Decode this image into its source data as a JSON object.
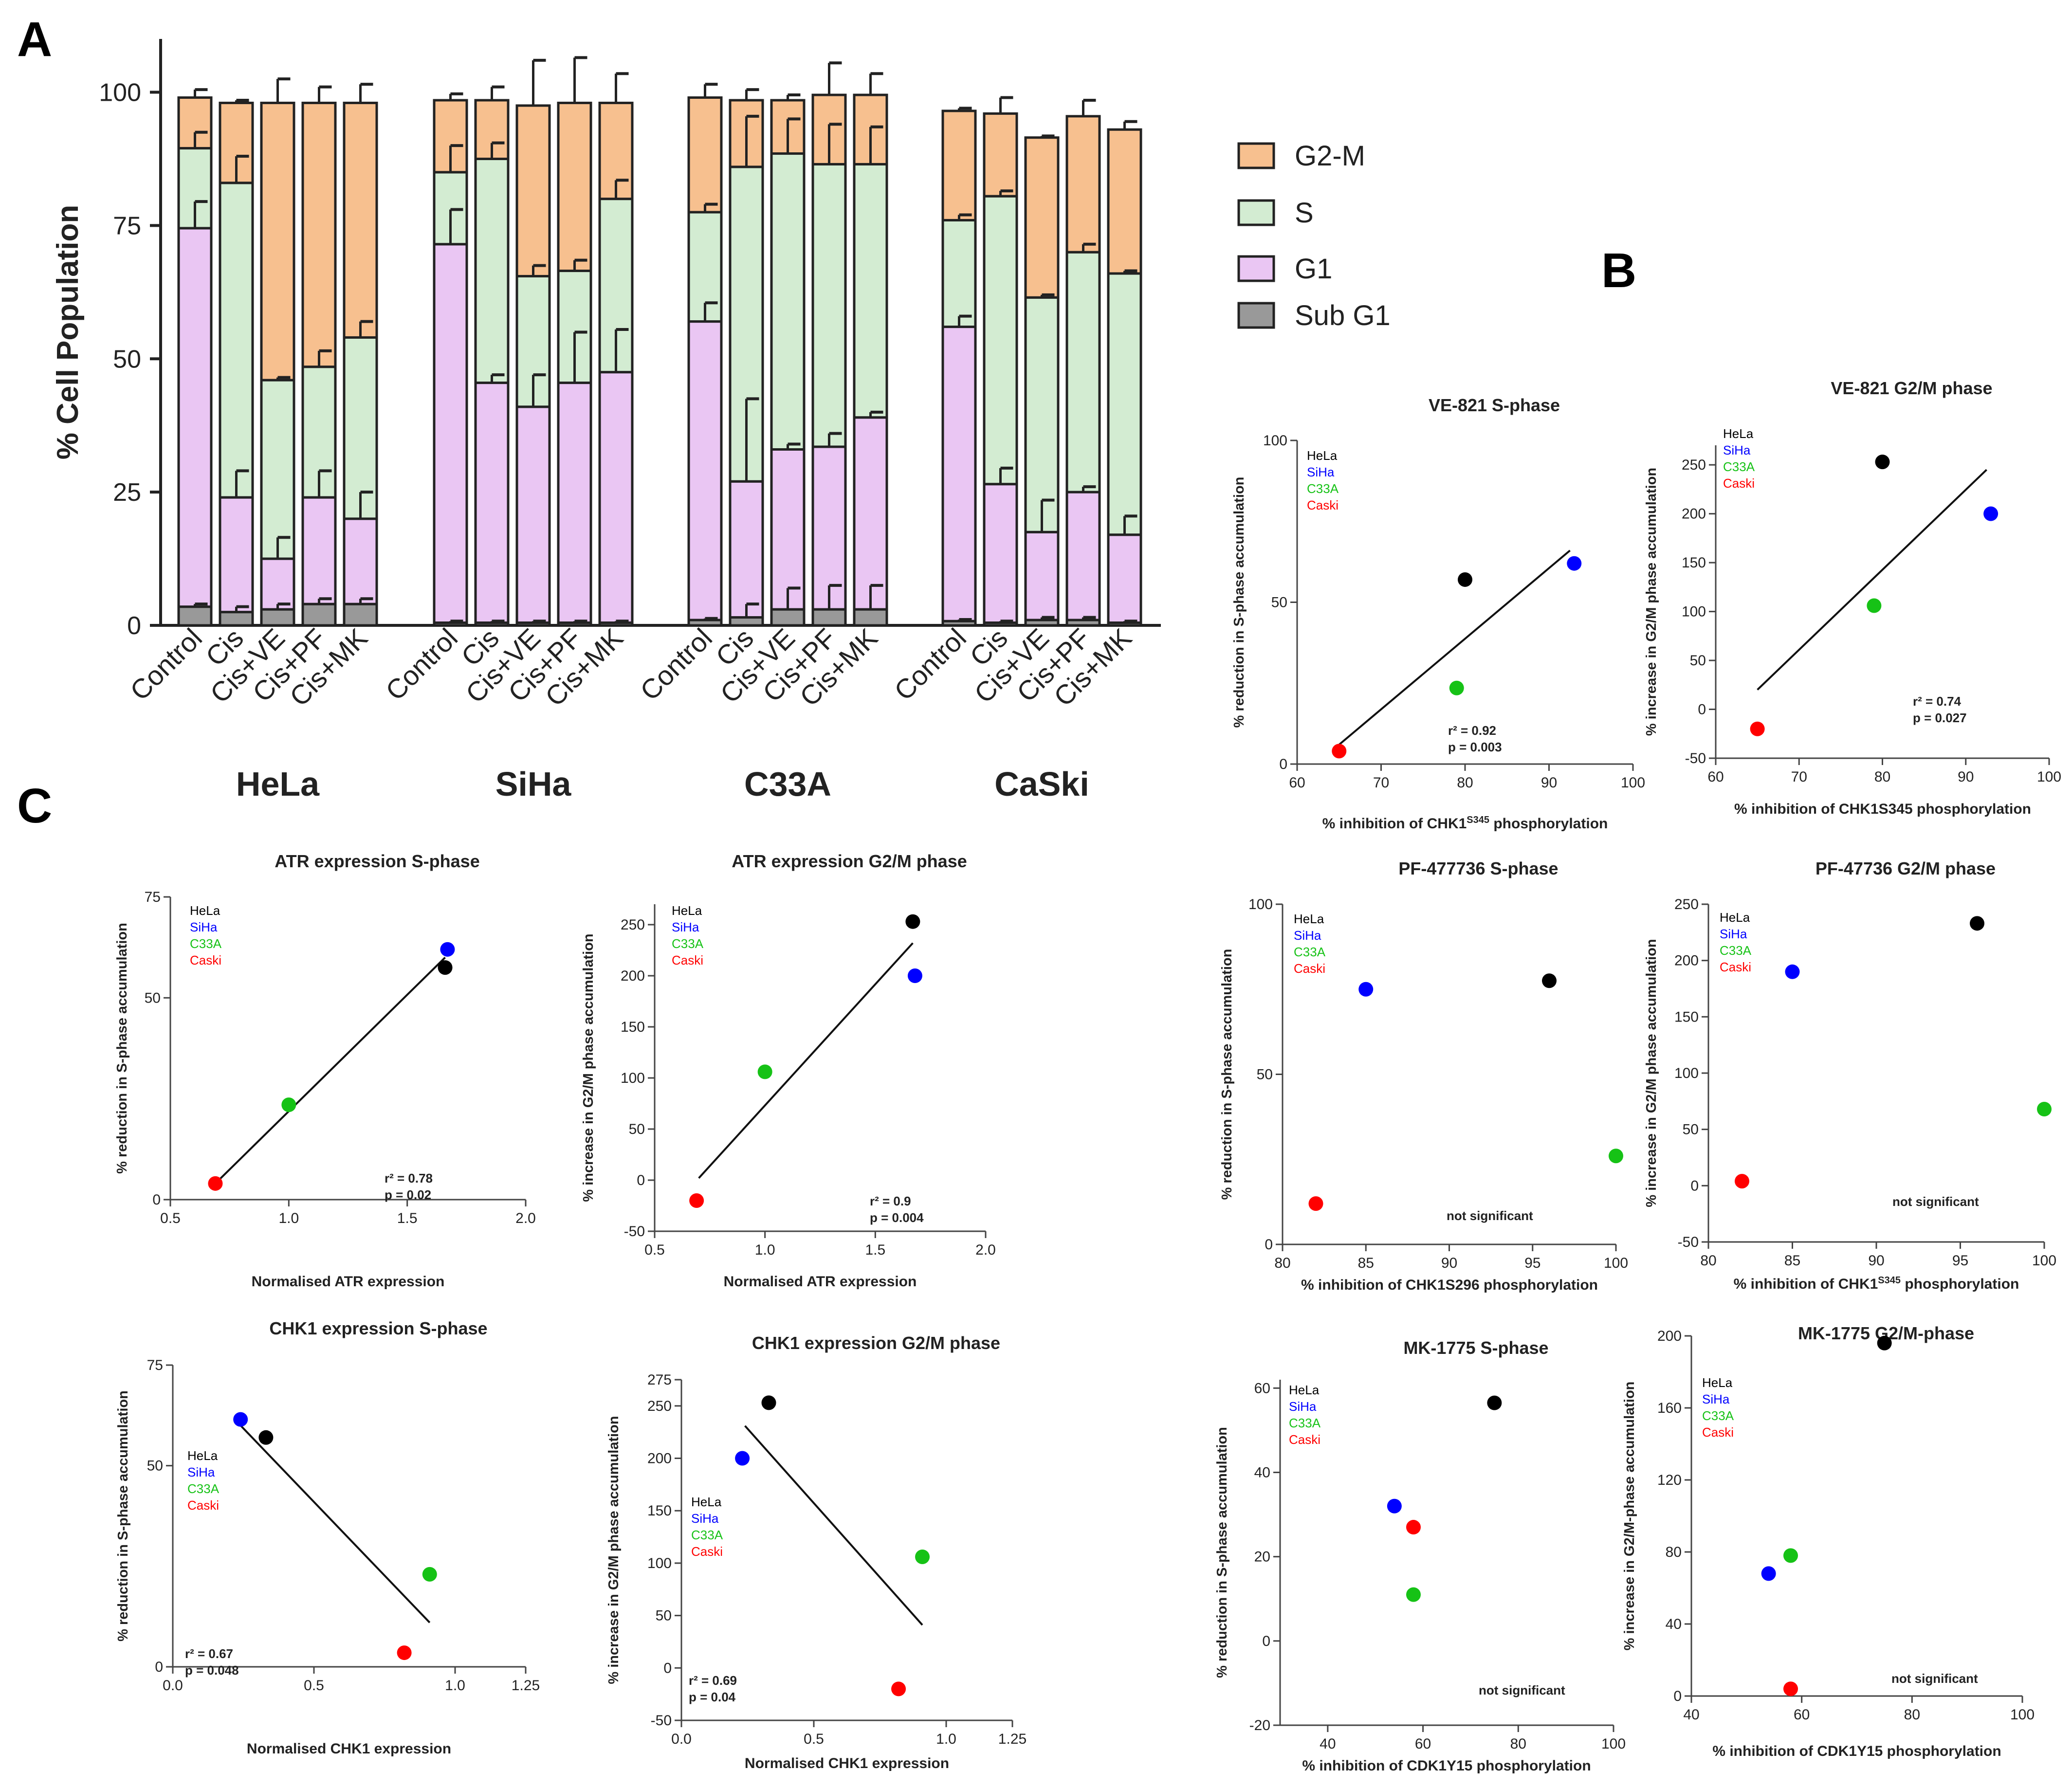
{
  "panel_labels": [
    "A",
    "B",
    "C"
  ],
  "colors": {
    "G2M": "#f7c08f",
    "S": "#d3ecd2",
    "G1": "#eac6f3",
    "SubG1": "#999999",
    "HeLa": "#000000",
    "SiHa": "#0000ff",
    "C33A": "#16c216",
    "Caski": "#ff0000"
  },
  "chart_data": [
    {
      "id": "A",
      "type": "bar",
      "stacked": true,
      "ylabel": "% Cell Population",
      "ylim": [
        0,
        110
      ],
      "yticks": [
        0,
        25,
        50,
        75,
        100
      ],
      "legend": {
        "position": "right",
        "entries": [
          {
            "key": "G2M",
            "label": "G2-M"
          },
          {
            "key": "S",
            "label": "S"
          },
          {
            "key": "G1",
            "label": "G1"
          },
          {
            "key": "SubG1",
            "label": "Sub G1"
          }
        ]
      },
      "groups": [
        {
          "name": "HeLa",
          "categories": [
            "Control",
            "Cis",
            "Cis+VE",
            "Cis+PF",
            "Cis+MK"
          ],
          "bars": [
            {
              "subG1": 3.5,
              "g1": 74.5,
              "s": 89.5,
              "total": 99,
              "err": {
                "subG1": 0.5,
                "g1": 5,
                "s": 3,
                "total": 1.5
              }
            },
            {
              "subG1": 2.5,
              "g1": 24,
              "s": 83,
              "total": 98,
              "err": {
                "subG1": 1,
                "g1": 5,
                "s": 5,
                "total": 0.5
              }
            },
            {
              "subG1": 3,
              "g1": 12.5,
              "s": 46,
              "total": 98,
              "err": {
                "subG1": 1,
                "g1": 4,
                "s": 0.5,
                "total": 4.5
              }
            },
            {
              "subG1": 4,
              "g1": 24,
              "s": 48.5,
              "total": 98,
              "err": {
                "subG1": 1,
                "g1": 5,
                "s": 3,
                "total": 3
              }
            },
            {
              "subG1": 4,
              "g1": 20,
              "s": 54,
              "total": 98,
              "err": {
                "subG1": 1,
                "g1": 5,
                "s": 3,
                "total": 3.5
              }
            }
          ]
        },
        {
          "name": "SiHa",
          "categories": [
            "Control",
            "Cis",
            "Cis+VE",
            "Cis+PF",
            "Cis+MK"
          ],
          "bars": [
            {
              "subG1": 0.5,
              "g1": 71.5,
              "s": 85,
              "total": 98.5,
              "err": {
                "subG1": 0.3,
                "g1": 6.5,
                "s": 5,
                "total": 1.2
              }
            },
            {
              "subG1": 0.5,
              "g1": 45.5,
              "s": 87.5,
              "total": 98.5,
              "err": {
                "subG1": 0.3,
                "g1": 1.5,
                "s": 3,
                "total": 2.5
              }
            },
            {
              "subG1": 0.5,
              "g1": 41,
              "s": 65.5,
              "total": 97.5,
              "err": {
                "subG1": 0.3,
                "g1": 6,
                "s": 2,
                "total": 8.5
              }
            },
            {
              "subG1": 0.5,
              "g1": 45.5,
              "s": 66.5,
              "total": 98,
              "err": {
                "subG1": 0.3,
                "g1": 9.5,
                "s": 2,
                "total": 8.5
              }
            },
            {
              "subG1": 0.5,
              "g1": 47.5,
              "s": 80,
              "total": 98,
              "err": {
                "subG1": 0.3,
                "g1": 8,
                "s": 3.5,
                "total": 5.5
              }
            }
          ]
        },
        {
          "name": "C33A",
          "categories": [
            "Control",
            "Cis",
            "Cis+VE",
            "Cis+PF",
            "Cis+MK"
          ],
          "bars": [
            {
              "subG1": 1,
              "g1": 57,
              "s": 77.5,
              "total": 99,
              "err": {
                "subG1": 0.3,
                "g1": 3.5,
                "s": 1.5,
                "total": 2.5
              }
            },
            {
              "subG1": 1.5,
              "g1": 27,
              "s": 86,
              "total": 98.5,
              "err": {
                "subG1": 2.5,
                "g1": 15.5,
                "s": 9.5,
                "total": 2
              }
            },
            {
              "subG1": 3,
              "g1": 33,
              "s": 88.5,
              "total": 98.5,
              "err": {
                "subG1": 4,
                "g1": 1,
                "s": 6.5,
                "total": 1
              }
            },
            {
              "subG1": 3,
              "g1": 33.5,
              "s": 86.5,
              "total": 99.5,
              "err": {
                "subG1": 4.5,
                "g1": 2.5,
                "s": 7.5,
                "total": 6
              }
            },
            {
              "subG1": 3,
              "g1": 39,
              "s": 86.5,
              "total": 99.5,
              "err": {
                "subG1": 4.5,
                "g1": 1,
                "s": 7,
                "total": 4
              }
            }
          ]
        },
        {
          "name": "CaSki",
          "categories": [
            "Control",
            "Cis",
            "Cis+VE",
            "Cis+PF",
            "Cis+MK"
          ],
          "bars": [
            {
              "subG1": 0.8,
              "g1": 56,
              "s": 76,
              "total": 96.5,
              "err": {
                "subG1": 0.3,
                "g1": 2,
                "s": 1,
                "total": 0.5
              }
            },
            {
              "subG1": 0.5,
              "g1": 26.5,
              "s": 80.5,
              "total": 96,
              "err": {
                "subG1": 0.3,
                "g1": 3,
                "s": 1,
                "total": 3
              }
            },
            {
              "subG1": 1,
              "g1": 17.5,
              "s": 61.5,
              "total": 91.5,
              "err": {
                "subG1": 0.5,
                "g1": 6,
                "s": 0.5,
                "total": 0.3
              }
            },
            {
              "subG1": 1,
              "g1": 25,
              "s": 70,
              "total": 95.5,
              "err": {
                "subG1": 0.5,
                "g1": 1,
                "s": 1.5,
                "total": 3
              }
            },
            {
              "subG1": 0.5,
              "g1": 17,
              "s": 66,
              "total": 93,
              "err": {
                "subG1": 0.3,
                "g1": 3.5,
                "s": 0.5,
                "total": 1.5
              }
            }
          ]
        }
      ]
    },
    {
      "id": "B1",
      "type": "scatter",
      "title": "VE-821 S-phase",
      "xlabel_parts": [
        "% inhibition of CHK1",
        "S345",
        " phosphorylation"
      ],
      "ylabel": "% reduction in S-phase accumulation",
      "xlim": [
        60,
        100
      ],
      "ylim": [
        0,
        100
      ],
      "xticks": [
        60,
        70,
        80,
        90,
        100
      ],
      "yticks": [
        0,
        50,
        100
      ],
      "points": [
        {
          "cell": "HeLa",
          "x": 80,
          "y": 57
        },
        {
          "cell": "SiHa",
          "x": 93,
          "y": 62
        },
        {
          "cell": "C33A",
          "x": 79,
          "y": 23.5
        },
        {
          "cell": "Caski",
          "x": 65,
          "y": 4
        }
      ],
      "fit": [
        {
          "x": 65,
          "y": 6
        },
        {
          "x": 92.5,
          "y": 66
        }
      ],
      "stats": [
        "r² = 0.92",
        "p = 0.003"
      ],
      "legend": [
        "HeLa",
        "SiHa",
        "C33A",
        "Caski"
      ]
    },
    {
      "id": "B2",
      "type": "scatter",
      "title": "VE-821 G2/M phase",
      "xlabel_parts": [
        "% inhibition of CHK1S345 phosphorylation"
      ],
      "ylabel": "% increase in G2/M phase accumulation",
      "xlim": [
        60,
        100
      ],
      "ylim": [
        -50,
        270
      ],
      "xticks": [
        60,
        70,
        80,
        90,
        100
      ],
      "yticks": [
        -50,
        0,
        50,
        100,
        150,
        200,
        250
      ],
      "points": [
        {
          "cell": "HeLa",
          "x": 80,
          "y": 253
        },
        {
          "cell": "SiHa",
          "x": 93,
          "y": 200
        },
        {
          "cell": "C33A",
          "x": 79,
          "y": 106
        },
        {
          "cell": "Caski",
          "x": 65,
          "y": -20
        }
      ],
      "fit": [
        {
          "x": 65,
          "y": 20
        },
        {
          "x": 92.5,
          "y": 245
        }
      ],
      "stats": [
        "r² = 0.74",
        "p = 0.027"
      ],
      "legend": [
        "HeLa",
        "SiHa",
        "C33A",
        "Caski"
      ]
    },
    {
      "id": "B3",
      "type": "scatter",
      "title": "PF-477736 S-phase",
      "xlabel_parts": [
        "% inhibition of CHK1S296 phosphorylation"
      ],
      "ylabel": "% reduction in S-phase accumulation",
      "xlim": [
        80,
        100
      ],
      "ylim": [
        0,
        100
      ],
      "xticks": [
        80,
        85,
        90,
        95,
        100
      ],
      "yticks": [
        0,
        50,
        100
      ],
      "points": [
        {
          "cell": "HeLa",
          "x": 96,
          "y": 77.5
        },
        {
          "cell": "SiHa",
          "x": 85,
          "y": 75
        },
        {
          "cell": "C33A",
          "x": 100,
          "y": 26
        },
        {
          "cell": "Caski",
          "x": 82,
          "y": 12
        }
      ],
      "stats": [
        "not significant"
      ],
      "legend": [
        "HeLa",
        "SiHa",
        "C33A",
        "Caski"
      ]
    },
    {
      "id": "B4",
      "type": "scatter",
      "title": "PF-47736 G2/M phase",
      "xlabel_parts": [
        "% inhibition of CHK1",
        "S345",
        " phosphorylation"
      ],
      "ylabel": "% increase in G2/M phase accumulation",
      "xlim": [
        80,
        100
      ],
      "ylim": [
        -50,
        250
      ],
      "xticks": [
        80,
        85,
        90,
        95,
        100
      ],
      "yticks": [
        -50,
        0,
        50,
        100,
        150,
        200,
        250
      ],
      "points": [
        {
          "cell": "HeLa",
          "x": 96,
          "y": 233
        },
        {
          "cell": "SiHa",
          "x": 85,
          "y": 190
        },
        {
          "cell": "C33A",
          "x": 100,
          "y": 68
        },
        {
          "cell": "Caski",
          "x": 82,
          "y": 4
        }
      ],
      "stats": [
        "not significant"
      ],
      "legend": [
        "HeLa",
        "SiHa",
        "C33A",
        "Caski"
      ]
    },
    {
      "id": "B5",
      "type": "scatter",
      "title": "MK-1775 S-phase",
      "xlabel_parts": [
        "% inhibition of CDK1Y15 phosphorylation"
      ],
      "ylabel": "% reduction in S-phase accumulation",
      "xlim": [
        30,
        100
      ],
      "ylim": [
        -20,
        62
      ],
      "xticks": [
        40,
        60,
        80,
        100
      ],
      "yticks": [
        -20,
        0,
        20,
        40,
        60
      ],
      "points": [
        {
          "cell": "HeLa",
          "x": 75,
          "y": 56.5
        },
        {
          "cell": "SiHa",
          "x": 54,
          "y": 32
        },
        {
          "cell": "C33A",
          "x": 58,
          "y": 11
        },
        {
          "cell": "Caski",
          "x": 58,
          "y": 27
        }
      ],
      "stats": [
        "not significant"
      ],
      "legend": [
        "HeLa",
        "SiHa",
        "C33A",
        "Caski"
      ]
    },
    {
      "id": "B6",
      "type": "scatter",
      "title": "MK-1775 G2/M-phase",
      "xlabel_parts": [
        "% inhibition of CDK1Y15 phosphorylation"
      ],
      "ylabel": "% increase in G2/M-phase accumulation",
      "xlim": [
        40,
        100
      ],
      "ylim": [
        0,
        200
      ],
      "xticks": [
        40,
        60,
        80,
        100
      ],
      "yticks": [
        0,
        40,
        80,
        120,
        160,
        200
      ],
      "points": [
        {
          "cell": "HeLa",
          "x": 75,
          "y": 196
        },
        {
          "cell": "SiHa",
          "x": 54,
          "y": 68
        },
        {
          "cell": "C33A",
          "x": 58,
          "y": 78
        },
        {
          "cell": "Caski",
          "x": 58,
          "y": 4
        }
      ],
      "stats": [
        "not significant"
      ],
      "legend": [
        "HeLa",
        "SiHa",
        "C33A",
        "Caski"
      ]
    },
    {
      "id": "C1",
      "type": "scatter",
      "title": "ATR expression  S-phase",
      "xlabel_parts": [
        "Normalised ATR expression"
      ],
      "ylabel": "% reduction in S-phase accumulation",
      "xlim": [
        0.5,
        2.0
      ],
      "ylim": [
        0,
        75
      ],
      "xticks": [
        0.5,
        1.0,
        1.5,
        2.0
      ],
      "yticks": [
        0,
        50,
        75
      ],
      "points": [
        {
          "cell": "HeLa",
          "x": 1.66,
          "y": 57.5
        },
        {
          "cell": "SiHa",
          "x": 1.67,
          "y": 62
        },
        {
          "cell": "C33A",
          "x": 1.0,
          "y": 23.5
        },
        {
          "cell": "Caski",
          "x": 0.69,
          "y": 4
        }
      ],
      "fit": [
        {
          "x": 0.69,
          "y": 4
        },
        {
          "x": 1.66,
          "y": 60
        }
      ],
      "stats": [
        "r² = 0.78",
        "p = 0.02"
      ],
      "legend": [
        "HeLa",
        "SiHa",
        "C33A",
        "Caski"
      ]
    },
    {
      "id": "C2",
      "type": "scatter",
      "title": "ATR expression G2/M phase",
      "xlabel_parts": [
        "Normalised ATR expression"
      ],
      "ylabel": "% increase in G2/M phase accumulation",
      "xlim": [
        0.5,
        2.0
      ],
      "ylim": [
        -50,
        270
      ],
      "xticks": [
        0.5,
        1.0,
        1.5,
        2.0
      ],
      "yticks": [
        -50,
        0,
        50,
        100,
        150,
        200,
        250
      ],
      "points": [
        {
          "cell": "HeLa",
          "x": 1.67,
          "y": 253
        },
        {
          "cell": "SiHa",
          "x": 1.68,
          "y": 200
        },
        {
          "cell": "C33A",
          "x": 1.0,
          "y": 106
        },
        {
          "cell": "Caski",
          "x": 0.69,
          "y": -20
        }
      ],
      "fit": [
        {
          "x": 0.7,
          "y": 2
        },
        {
          "x": 1.67,
          "y": 232
        }
      ],
      "stats": [
        "r² = 0.9",
        "p = 0.004"
      ],
      "legend": [
        "HeLa",
        "SiHa",
        "C33A",
        "Caski"
      ]
    },
    {
      "id": "C3",
      "type": "scatter",
      "title": "CHK1 expression  S-phase",
      "xlabel_parts": [
        "Normalised CHK1 expression"
      ],
      "ylabel": "% reduction in S-phase accumulation",
      "xlim": [
        0,
        1.25
      ],
      "ylim": [
        0,
        75
      ],
      "xticks": [
        0.0,
        0.5,
        1.0,
        1.25
      ],
      "yticks": [
        0,
        50,
        75
      ],
      "points": [
        {
          "cell": "HeLa",
          "x": 0.33,
          "y": 57
        },
        {
          "cell": "SiHa",
          "x": 0.24,
          "y": 61.5
        },
        {
          "cell": "C33A",
          "x": 0.91,
          "y": 23
        },
        {
          "cell": "Caski",
          "x": 0.82,
          "y": 3.5
        }
      ],
      "fit": [
        {
          "x": 0.24,
          "y": 60
        },
        {
          "x": 0.91,
          "y": 11
        }
      ],
      "stats": [
        "r² = 0.67",
        "p = 0.048"
      ],
      "legend": [
        "HeLa",
        "SiHa",
        "C33A",
        "Caski"
      ]
    },
    {
      "id": "C4",
      "type": "scatter",
      "title": "CHK1 expression G2/M phase",
      "xlabel_parts": [
        "Normalised CHK1 expression"
      ],
      "ylabel": "% increase in G2/M phase accumulation",
      "xlim": [
        0,
        1.25
      ],
      "ylim": [
        -50,
        275
      ],
      "xticks": [
        0.0,
        0.5,
        1.0,
        1.25
      ],
      "yticks": [
        -50,
        0,
        50,
        100,
        150,
        200,
        250,
        275
      ],
      "points": [
        {
          "cell": "HeLa",
          "x": 0.33,
          "y": 253
        },
        {
          "cell": "SiHa",
          "x": 0.23,
          "y": 200
        },
        {
          "cell": "C33A",
          "x": 0.91,
          "y": 106
        },
        {
          "cell": "Caski",
          "x": 0.82,
          "y": -20
        }
      ],
      "fit": [
        {
          "x": 0.24,
          "y": 231
        },
        {
          "x": 0.91,
          "y": 41
        }
      ],
      "stats": [
        "r² = 0.69",
        "p = 0.04"
      ],
      "legend": [
        "HeLa",
        "SiHa",
        "C33A",
        "Caski"
      ]
    }
  ]
}
